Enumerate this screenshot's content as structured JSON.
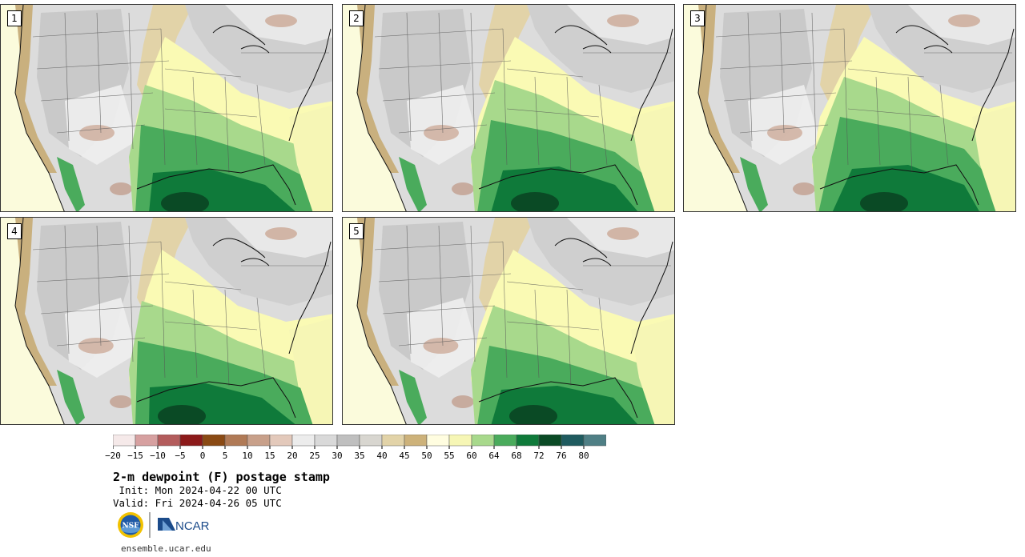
{
  "panels": [
    {
      "label": "1"
    },
    {
      "label": "2"
    },
    {
      "label": "3"
    },
    {
      "label": "4"
    },
    {
      "label": "5"
    }
  ],
  "colorbar": {
    "colors": [
      "#f5e9e9",
      "#d6a0a0",
      "#b35c5c",
      "#8c1a1a",
      "#8a4a14",
      "#b07a56",
      "#c8a08a",
      "#e3c9bb",
      "#ececec",
      "#d9d9d9",
      "#bfbfbf",
      "#d8d6d0",
      "#e2d3a8",
      "#cdb27a",
      "#fffde0",
      "#f6f6b5",
      "#a8d98c",
      "#4aab5c",
      "#0f7a3a",
      "#0a4a25",
      "#1f5b5f",
      "#4f7f85"
    ],
    "tick_labels": [
      "-20",
      "-15",
      "-10",
      "-5",
      "0",
      "5",
      "10",
      "15",
      "20",
      "25",
      "30",
      "35",
      "40",
      "45",
      "50",
      "55",
      "60",
      "64",
      "68",
      "72",
      "76",
      "80"
    ]
  },
  "title": "2-m dewpoint (F) postage stamp",
  "init": " Init: Mon 2024-04-22 00 UTC",
  "valid": "Valid: Fri 2024-04-26 05 UTC",
  "logos": {
    "nsf": "NSF",
    "ncar": "NCAR"
  },
  "website": "ensemble.ucar.edu"
}
